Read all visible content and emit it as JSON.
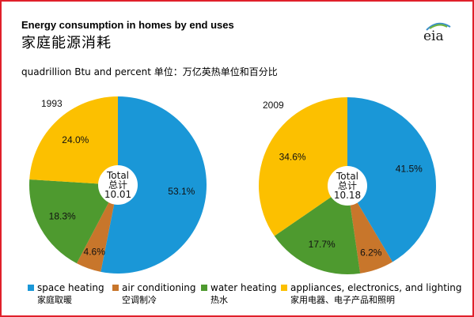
{
  "title_en": "Energy consumption in homes by end uses",
  "title_zh": "家庭能源消耗",
  "subtitle": "quadrillion Btu and percent  单位：万亿英热单位和百分比",
  "logo_text": "eia",
  "chart_data": [
    {
      "type": "pie",
      "year_label": "1993",
      "center_label": [
        "Total",
        "总计",
        "10.01"
      ],
      "slices": [
        {
          "category": "space heating",
          "value": 53.1,
          "label": "53.1%",
          "color": "#1a97d7"
        },
        {
          "category": "air conditioning",
          "value": 4.6,
          "label": "4.6%",
          "color": "#c8762b"
        },
        {
          "category": "water heating",
          "value": 18.3,
          "label": "18.3%",
          "color": "#4e9a2f"
        },
        {
          "category": "appliances, electronics, and lighting",
          "value": 24.0,
          "label": "24.0%",
          "color": "#fcc000"
        }
      ]
    },
    {
      "type": "pie",
      "year_label": "2009",
      "center_label": [
        "Total",
        "总计",
        "10.18"
      ],
      "slices": [
        {
          "category": "space heating",
          "value": 41.5,
          "label": "41.5%",
          "color": "#1a97d7"
        },
        {
          "category": "air conditioning",
          "value": 6.2,
          "label": "6.2%",
          "color": "#c8762b"
        },
        {
          "category": "water heating",
          "value": 17.7,
          "label": "17.7%",
          "color": "#4e9a2f"
        },
        {
          "category": "appliances, electronics, and lighting",
          "value": 34.6,
          "label": "34.6%",
          "color": "#fcc000"
        }
      ]
    }
  ],
  "legend": [
    {
      "label": "space heating",
      "label_zh": "家庭取暖",
      "color": "#1a97d7"
    },
    {
      "label": "air conditioning",
      "label_zh": "空调制冷",
      "color": "#c8762b"
    },
    {
      "label": "water heating",
      "label_zh": "热水",
      "color": "#4e9a2f"
    },
    {
      "label": "appliances, electronics, and lighting",
      "label_zh": "家用电器、电子产品和照明",
      "color": "#fcc000"
    }
  ]
}
